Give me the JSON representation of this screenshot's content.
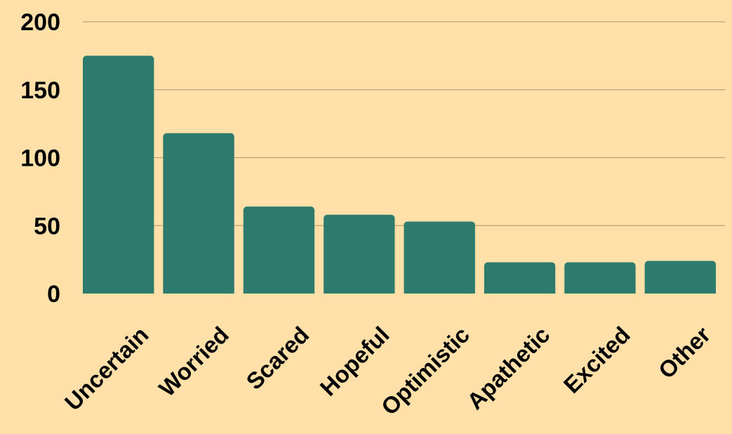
{
  "colors": {
    "background": "#FFE0A8",
    "bar": "#2C7B6C",
    "gridline": "#BFA276",
    "text": "#000000"
  },
  "chart_data": {
    "type": "bar",
    "title": "",
    "xlabel": "",
    "ylabel": "",
    "categories": [
      "Uncertain",
      "Worried",
      "Scared",
      "Hopeful",
      "Optimistic",
      "Apathetic",
      "Excited",
      "Other"
    ],
    "values": [
      175,
      118,
      64,
      58,
      53,
      23,
      23,
      24
    ],
    "ylim": [
      0,
      200
    ],
    "yticks": [
      "0",
      "50",
      "100",
      "150",
      "200"
    ],
    "grid": true,
    "legend": "none"
  }
}
